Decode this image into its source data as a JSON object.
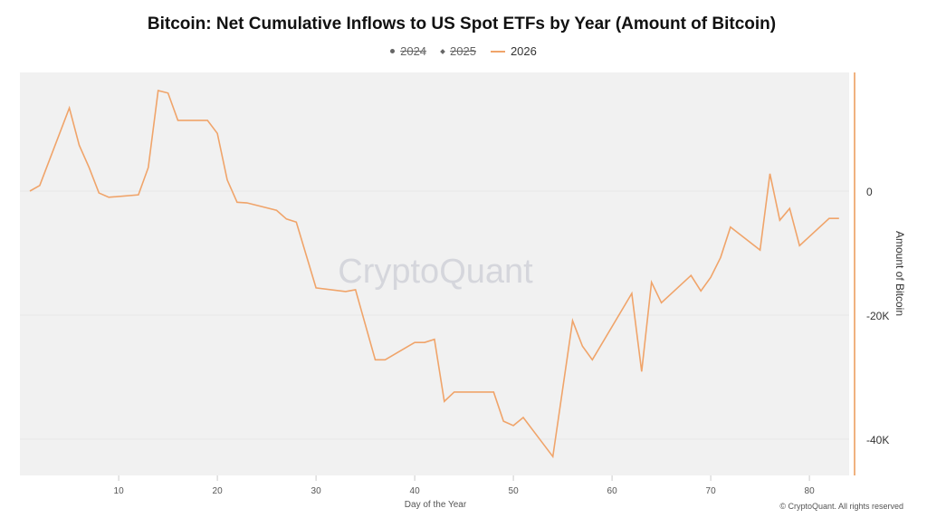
{
  "chart_data": {
    "type": "line",
    "title": "Bitcoin: Net Cumulative Inflows to US Spot ETFs by Year (Amount of Bitcoin)",
    "xlabel": "Day of the Year",
    "ylabel": "Amount of Bitcoin",
    "xlim": [
      0,
      84
    ],
    "ylim": [
      -46000,
      19000
    ],
    "x_ticks": [
      10,
      20,
      30,
      40,
      50,
      60,
      70,
      80
    ],
    "y_ticks": [
      0,
      -20000,
      -40000
    ],
    "y_tick_labels": [
      "0",
      "-20K",
      "-40K"
    ],
    "y_axis_side": "right",
    "grid": true,
    "legend_position": "top",
    "legend": [
      {
        "name": "2024",
        "hidden": true,
        "marker": "dot"
      },
      {
        "name": "2025",
        "hidden": true,
        "marker": "diamond"
      },
      {
        "name": "2026",
        "hidden": false,
        "marker": "line"
      }
    ],
    "series": [
      {
        "name": "2026",
        "color": "#f0a46a",
        "x": [
          1,
          2,
          5,
          6,
          7,
          8,
          9,
          12,
          13,
          14,
          15,
          16,
          19,
          20,
          21,
          22,
          23,
          26,
          27,
          28,
          30,
          33,
          34,
          36,
          37,
          40,
          41,
          42,
          43,
          44,
          48,
          49,
          50,
          51,
          54,
          56,
          57,
          58,
          62,
          63,
          64,
          65,
          68,
          69,
          70,
          71,
          72,
          75,
          76,
          77,
          78,
          79,
          82,
          83
        ],
        "y": [
          0,
          900,
          13400,
          7400,
          3800,
          -300,
          -1000,
          -600,
          3800,
          16200,
          15800,
          11400,
          11400,
          9300,
          1800,
          -1800,
          -1900,
          -3100,
          -4500,
          -5000,
          -15600,
          -16200,
          -15900,
          -27200,
          -27200,
          -24400,
          -24400,
          -23900,
          -33900,
          -32400,
          -32400,
          -37100,
          -37800,
          -36500,
          -42800,
          -20900,
          -25000,
          -27200,
          -16500,
          -29100,
          -14700,
          -18000,
          -13600,
          -16100,
          -13900,
          -10700,
          -5800,
          -9500,
          2800,
          -4700,
          -2800,
          -8800,
          -4400,
          -4400
        ]
      }
    ],
    "watermark": "CryptoQuant",
    "copyright": "© CryptoQuant. All rights reserved"
  }
}
